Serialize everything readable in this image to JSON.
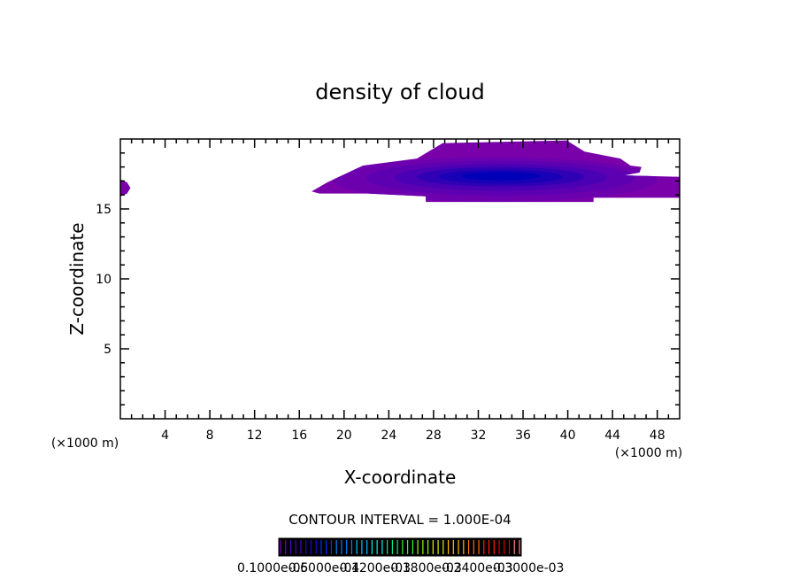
{
  "chart_data": {
    "type": "heatmap",
    "title": "density of cloud",
    "xlabel": "X-coordinate",
    "ylabel": "Z-coordinate",
    "x_unit_left": "(×1000 m)",
    "x_unit_right": "(×1000 m)",
    "xlim": [
      0,
      50
    ],
    "ylim": [
      0,
      20
    ],
    "xticks": [
      4,
      8,
      12,
      16,
      20,
      24,
      28,
      32,
      36,
      40,
      44,
      48
    ],
    "yticks": [
      5,
      10,
      15
    ],
    "grid": false,
    "contour_interval_label": "CONTOUR INTERVAL = 1.000E-04",
    "colorbar_labels": [
      "0.1000e-05",
      "0.6000e-04",
      "0.1200e-03",
      "0.1800e-03",
      "0.2400e-03",
      "0.3000e-03"
    ],
    "colorbar_colors": [
      "#7a00c0",
      "#5000c0",
      "#2000e0",
      "#0030ff",
      "#0080ff",
      "#00c0ff",
      "#00f0e0",
      "#00f080",
      "#30ff30",
      "#90ff00",
      "#e0f000",
      "#ffc000",
      "#ff7000",
      "#ff2000",
      "#e00000",
      "#ff8080"
    ],
    "outer_region": {
      "color": "#7a00aa",
      "points": [
        [
          17.1,
          16.25
        ],
        [
          18.5,
          16.9
        ],
        [
          21.7,
          18.1
        ],
        [
          26.5,
          18.6
        ],
        [
          28.8,
          19.7
        ],
        [
          39.9,
          19.9
        ],
        [
          41.5,
          19.1
        ],
        [
          44.7,
          18.6
        ],
        [
          45.6,
          18.1
        ],
        [
          46.6,
          18.0
        ],
        [
          46.4,
          17.6
        ],
        [
          45.0,
          17.4
        ],
        [
          50,
          17.3
        ],
        [
          50,
          15.8
        ],
        [
          42.3,
          15.8
        ],
        [
          42.3,
          15.5
        ],
        [
          27.3,
          15.5
        ],
        [
          27.3,
          15.9
        ],
        [
          22.1,
          16.1
        ],
        [
          17.8,
          16.1
        ]
      ]
    },
    "left_blob": {
      "color": "#7a00aa",
      "points": [
        [
          0,
          17.1
        ],
        [
          0.6,
          16.9
        ],
        [
          0.9,
          16.5
        ],
        [
          0.6,
          16.1
        ],
        [
          0,
          15.9
        ]
      ]
    },
    "inner_levels": [
      {
        "color": "#6c00ae",
        "cx": 33.5,
        "cz": 17.1,
        "rx": 14.5,
        "rz": 1.6
      },
      {
        "color": "#5c00b2",
        "cx": 34.0,
        "cz": 17.2,
        "rx": 12.0,
        "rz": 1.25
      },
      {
        "color": "#4a00b4",
        "cx": 34.0,
        "cz": 17.25,
        "rx": 9.5,
        "rz": 0.95
      },
      {
        "color": "#3000b4",
        "cx": 34.0,
        "cz": 17.3,
        "rx": 7.5,
        "rz": 0.7
      },
      {
        "color": "#1800b6",
        "cx": 34.0,
        "cz": 17.3,
        "rx": 5.5,
        "rz": 0.5
      },
      {
        "color": "#0000b8",
        "cx": 34.0,
        "cz": 17.35,
        "rx": 3.5,
        "rz": 0.3
      }
    ]
  }
}
